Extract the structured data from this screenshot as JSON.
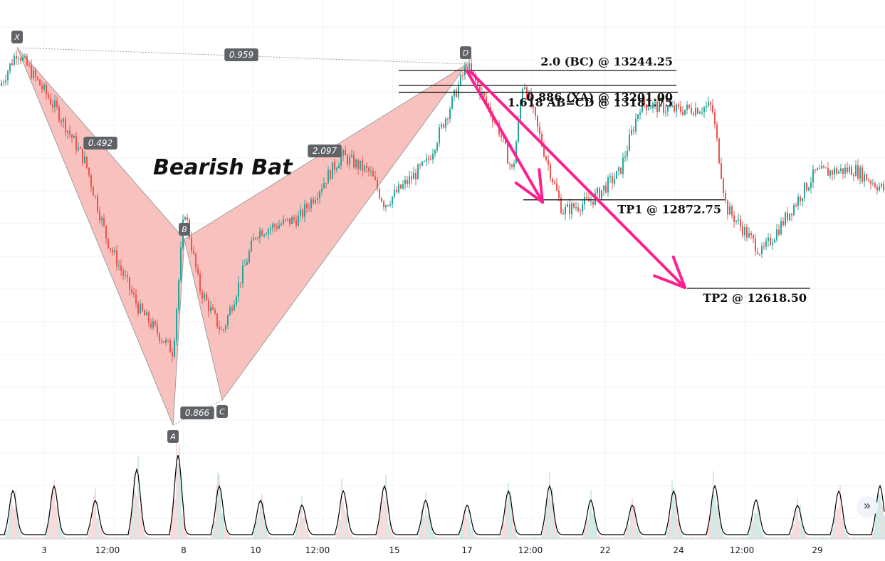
{
  "chart_data": {
    "type": "line",
    "title": "Bearish Bat",
    "x_ticks": [
      "3",
      "12:00",
      "8",
      "10",
      "12:00",
      "15",
      "17",
      "12:00",
      "22",
      "24",
      "12:00",
      "29"
    ],
    "pattern_points": [
      {
        "label": "X",
        "price": 13300
      },
      {
        "label": "A",
        "price": 12435
      },
      {
        "label": "B",
        "price": 12850
      },
      {
        "label": "C",
        "price": 12490
      },
      {
        "label": "D",
        "price": 13260
      }
    ],
    "ratios": [
      {
        "label": "0.959",
        "between": "X-D"
      },
      {
        "label": "0.492",
        "between": "X-B"
      },
      {
        "label": "0.866",
        "between": "A-C"
      },
      {
        "label": "2.097",
        "between": "B-D"
      }
    ],
    "levels": [
      {
        "label": "2.0 (BC) @ 13244.25",
        "price": 13244.25
      },
      {
        "label": "0.886 (XA) @ 13201.00",
        "price": 13201.0
      },
      {
        "label": "1.618 AB=CD @ 13181.75",
        "price": 13181.75
      },
      {
        "label": "TP1 @ 12872.75",
        "price": 12872.75
      },
      {
        "label": "TP2 @ 12618.50",
        "price": 12618.5
      }
    ],
    "colors": {
      "up": "#26a69a",
      "down": "#ef5350",
      "pattern_fill": "#f7a6a3",
      "arrow": "#ff1f8e",
      "volume_up": "#a5d6cf",
      "volume_down": "#f5b7b6",
      "oscillator": "#000000"
    },
    "grid": true
  },
  "ui": {
    "scroll_icon": "double-chevron-right-icon",
    "scroll_glyph": "»"
  }
}
